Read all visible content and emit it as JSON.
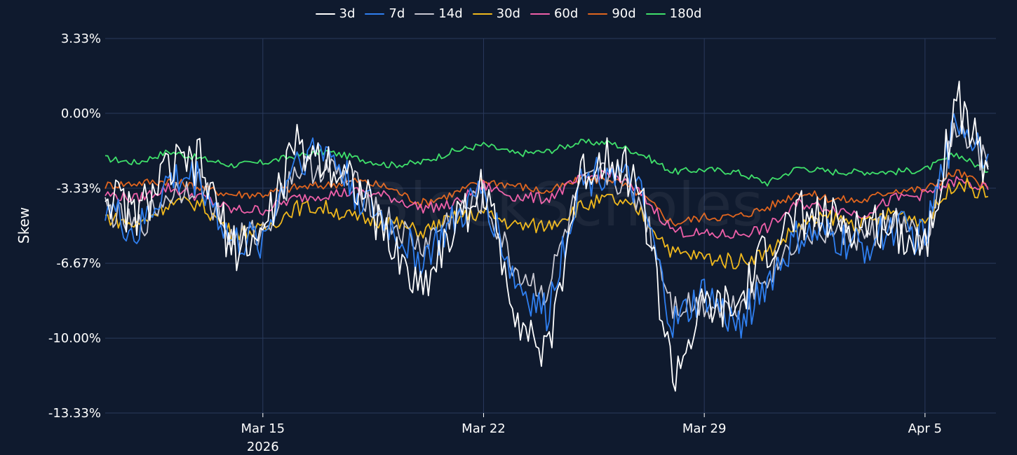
{
  "watermark": "BlockScholes",
  "chart_data": {
    "type": "line",
    "ylabel": "Skew",
    "y_ticks": [
      "3.33%",
      "0.00%",
      "-3.33%",
      "-6.67%",
      "-10.00%",
      "-13.33%"
    ],
    "y_tick_values": [
      3.33,
      0,
      -3.33,
      -6.67,
      -10,
      -13.33
    ],
    "ylim": [
      -13.33,
      3.33
    ],
    "x_range": [
      "2026-03-10",
      "2026-04-07T06:00"
    ],
    "x_ticks": [
      {
        "date": "2026-03-15",
        "label": "Mar 15",
        "sublabel": "2026"
      },
      {
        "date": "2026-03-22",
        "label": "Mar 22",
        "sublabel": ""
      },
      {
        "date": "2026-03-29",
        "label": "Mar 29",
        "sublabel": ""
      },
      {
        "date": "2026-04-05",
        "label": "Apr 5",
        "sublabel": ""
      }
    ],
    "grid": true,
    "legend_position": "top-center",
    "x": [
      "2026-03-10",
      "2026-03-11",
      "2026-03-12",
      "2026-03-13",
      "2026-03-14",
      "2026-03-15",
      "2026-03-16",
      "2026-03-17",
      "2026-03-18",
      "2026-03-19",
      "2026-03-20",
      "2026-03-21",
      "2026-03-22",
      "2026-03-23",
      "2026-03-24",
      "2026-03-25",
      "2026-03-26",
      "2026-03-27",
      "2026-03-28",
      "2026-03-29",
      "2026-03-30",
      "2026-03-31",
      "2026-04-01",
      "2026-04-02",
      "2026-04-03",
      "2026-04-04",
      "2026-04-05",
      "2026-04-06",
      "2026-04-07"
    ],
    "series": [
      {
        "name": "3d",
        "color": "#ffffff",
        "values": [
          -3.5,
          -4.6,
          -2.5,
          -2.2,
          -6.0,
          -5.4,
          -1.5,
          -2.0,
          -3.1,
          -5.8,
          -7.8,
          -5.2,
          -3.2,
          -8.6,
          -11.0,
          -3.0,
          -1.6,
          -3.4,
          -11.8,
          -8.6,
          -8.8,
          -6.0,
          -4.5,
          -4.8,
          -5.0,
          -5.0,
          -5.9,
          0.6,
          -2.5
        ]
      },
      {
        "name": "7d",
        "color": "#2f7ff0",
        "values": [
          -4.0,
          -5.5,
          -3.0,
          -2.8,
          -5.8,
          -5.6,
          -2.0,
          -1.5,
          -3.6,
          -5.0,
          -6.5,
          -5.0,
          -3.4,
          -7.5,
          -9.0,
          -3.2,
          -2.3,
          -3.8,
          -9.5,
          -8.0,
          -9.5,
          -7.5,
          -5.5,
          -5.5,
          -6.0,
          -5.0,
          -5.6,
          -0.2,
          -1.8
        ]
      },
      {
        "name": "14d",
        "color": "#c8c8d2",
        "values": [
          -4.2,
          -5.2,
          -3.6,
          -3.0,
          -5.6,
          -5.3,
          -2.5,
          -2.4,
          -3.3,
          -4.8,
          -6.0,
          -4.6,
          -3.8,
          -7.0,
          -8.0,
          -3.5,
          -2.6,
          -4.0,
          -8.5,
          -8.5,
          -8.6,
          -7.2,
          -5.4,
          -5.2,
          -5.6,
          -4.7,
          -5.8,
          -0.6,
          -2.4
        ]
      },
      {
        "name": "30d",
        "color": "#f0b81c",
        "values": [
          -4.6,
          -5.0,
          -4.0,
          -4.0,
          -5.3,
          -5.2,
          -4.2,
          -4.2,
          -4.7,
          -4.8,
          -5.3,
          -4.7,
          -4.4,
          -5.0,
          -5.0,
          -4.2,
          -3.8,
          -4.4,
          -6.2,
          -6.4,
          -6.6,
          -6.2,
          -5.0,
          -4.6,
          -5.0,
          -4.4,
          -4.8,
          -3.0,
          -3.7
        ]
      },
      {
        "name": "60d",
        "color": "#ee5fa8",
        "values": [
          -3.6,
          -3.8,
          -3.3,
          -3.7,
          -4.3,
          -4.3,
          -3.8,
          -3.6,
          -3.5,
          -3.7,
          -4.2,
          -4.1,
          -3.2,
          -3.7,
          -3.8,
          -3.0,
          -2.6,
          -3.6,
          -5.2,
          -5.4,
          -5.4,
          -5.1,
          -4.0,
          -4.2,
          -4.5,
          -3.8,
          -3.6,
          -3.0,
          -3.4
        ]
      },
      {
        "name": "90d",
        "color": "#e0651e",
        "values": [
          -3.2,
          -3.1,
          -3.0,
          -3.3,
          -3.6,
          -3.6,
          -3.3,
          -3.2,
          -3.0,
          -3.3,
          -4.0,
          -3.6,
          -3.0,
          -3.2,
          -3.5,
          -3.0,
          -2.9,
          -3.6,
          -4.9,
          -4.6,
          -4.6,
          -4.2,
          -3.5,
          -3.8,
          -3.9,
          -3.4,
          -3.4,
          -2.6,
          -3.3
        ]
      },
      {
        "name": "180d",
        "color": "#3fe06a",
        "values": [
          -2.0,
          -2.2,
          -1.7,
          -2.0,
          -2.3,
          -2.2,
          -1.9,
          -1.7,
          -2.0,
          -2.3,
          -2.2,
          -1.7,
          -1.4,
          -1.8,
          -1.7,
          -1.3,
          -1.3,
          -1.8,
          -2.6,
          -2.5,
          -2.6,
          -3.1,
          -2.4,
          -2.6,
          -2.6,
          -2.6,
          -2.5,
          -1.8,
          -2.6
        ]
      }
    ]
  }
}
